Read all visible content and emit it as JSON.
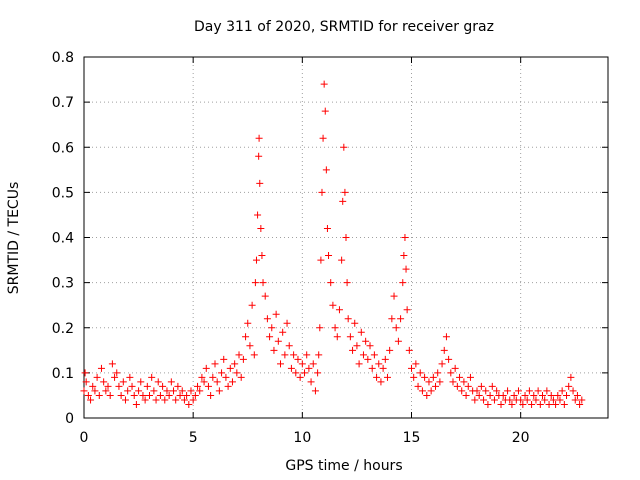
{
  "chart_data": {
    "type": "scatter",
    "title": "Day 311 of 2020, SRMTID for receiver graz",
    "xlabel": "GPS time / hours",
    "ylabel": "SRMTID / TECUs",
    "xlim": [
      0,
      24
    ],
    "ylim": [
      0,
      0.8
    ],
    "x_ticks": [
      0,
      5,
      10,
      15,
      20
    ],
    "x_tick_labels": [
      "0",
      "5",
      "10",
      "15",
      "20"
    ],
    "y_ticks": [
      0,
      0.1,
      0.2,
      0.3,
      0.4,
      0.5,
      0.6,
      0.7,
      0.8
    ],
    "y_tick_labels": [
      "0",
      "0.1",
      "0.2",
      "0.3",
      "0.4",
      "0.5",
      "0.6",
      "0.7",
      "0.8"
    ],
    "grid": true,
    "marker": "+",
    "color": "#ff0000",
    "series": [
      {
        "name": "SRMTID",
        "points": [
          [
            0.0,
            0.06
          ],
          [
            0.05,
            0.1
          ],
          [
            0.1,
            0.08
          ],
          [
            0.2,
            0.05
          ],
          [
            0.3,
            0.04
          ],
          [
            0.4,
            0.07
          ],
          [
            0.5,
            0.06
          ],
          [
            0.6,
            0.09
          ],
          [
            0.7,
            0.05
          ],
          [
            0.8,
            0.11
          ],
          [
            0.9,
            0.08
          ],
          [
            1.0,
            0.06
          ],
          [
            1.1,
            0.07
          ],
          [
            1.2,
            0.05
          ],
          [
            1.3,
            0.12
          ],
          [
            1.4,
            0.09
          ],
          [
            1.5,
            0.1
          ],
          [
            1.6,
            0.07
          ],
          [
            1.7,
            0.05
          ],
          [
            1.8,
            0.08
          ],
          [
            1.9,
            0.04
          ],
          [
            2.0,
            0.06
          ],
          [
            2.1,
            0.09
          ],
          [
            2.2,
            0.07
          ],
          [
            2.3,
            0.05
          ],
          [
            2.4,
            0.03
          ],
          [
            2.5,
            0.06
          ],
          [
            2.6,
            0.08
          ],
          [
            2.7,
            0.05
          ],
          [
            2.8,
            0.04
          ],
          [
            2.9,
            0.07
          ],
          [
            3.0,
            0.05
          ],
          [
            3.1,
            0.09
          ],
          [
            3.2,
            0.06
          ],
          [
            3.3,
            0.04
          ],
          [
            3.4,
            0.08
          ],
          [
            3.5,
            0.05
          ],
          [
            3.6,
            0.07
          ],
          [
            3.7,
            0.04
          ],
          [
            3.8,
            0.06
          ],
          [
            3.9,
            0.05
          ],
          [
            4.0,
            0.08
          ],
          [
            4.1,
            0.06
          ],
          [
            4.2,
            0.04
          ],
          [
            4.3,
            0.07
          ],
          [
            4.4,
            0.05
          ],
          [
            4.5,
            0.06
          ],
          [
            4.6,
            0.04
          ],
          [
            4.7,
            0.05
          ],
          [
            4.8,
            0.03
          ],
          [
            4.9,
            0.06
          ],
          [
            5.0,
            0.04
          ],
          [
            5.1,
            0.05
          ],
          [
            5.2,
            0.07
          ],
          [
            5.3,
            0.06
          ],
          [
            5.4,
            0.09
          ],
          [
            5.5,
            0.08
          ],
          [
            5.6,
            0.11
          ],
          [
            5.7,
            0.07
          ],
          [
            5.8,
            0.05
          ],
          [
            5.9,
            0.09
          ],
          [
            6.0,
            0.12
          ],
          [
            6.1,
            0.08
          ],
          [
            6.2,
            0.06
          ],
          [
            6.3,
            0.1
          ],
          [
            6.4,
            0.13
          ],
          [
            6.5,
            0.09
          ],
          [
            6.6,
            0.07
          ],
          [
            6.7,
            0.11
          ],
          [
            6.8,
            0.08
          ],
          [
            6.9,
            0.12
          ],
          [
            7.0,
            0.1
          ],
          [
            7.1,
            0.14
          ],
          [
            7.2,
            0.09
          ],
          [
            7.3,
            0.13
          ],
          [
            7.4,
            0.18
          ],
          [
            7.5,
            0.21
          ],
          [
            7.6,
            0.16
          ],
          [
            7.7,
            0.25
          ],
          [
            7.8,
            0.14
          ],
          [
            7.85,
            0.3
          ],
          [
            7.9,
            0.35
          ],
          [
            7.95,
            0.45
          ],
          [
            8.0,
            0.58
          ],
          [
            8.02,
            0.62
          ],
          [
            8.05,
            0.52
          ],
          [
            8.1,
            0.42
          ],
          [
            8.15,
            0.36
          ],
          [
            8.2,
            0.3
          ],
          [
            8.3,
            0.27
          ],
          [
            8.4,
            0.22
          ],
          [
            8.5,
            0.18
          ],
          [
            8.6,
            0.2
          ],
          [
            8.7,
            0.15
          ],
          [
            8.8,
            0.23
          ],
          [
            8.9,
            0.17
          ],
          [
            9.0,
            0.12
          ],
          [
            9.1,
            0.19
          ],
          [
            9.2,
            0.14
          ],
          [
            9.3,
            0.21
          ],
          [
            9.4,
            0.16
          ],
          [
            9.5,
            0.11
          ],
          [
            9.6,
            0.14
          ],
          [
            9.7,
            0.1
          ],
          [
            9.8,
            0.13
          ],
          [
            9.9,
            0.09
          ],
          [
            10.0,
            0.12
          ],
          [
            10.1,
            0.1
          ],
          [
            10.2,
            0.14
          ],
          [
            10.3,
            0.11
          ],
          [
            10.4,
            0.08
          ],
          [
            10.5,
            0.12
          ],
          [
            10.6,
            0.06
          ],
          [
            10.7,
            0.1
          ],
          [
            10.75,
            0.14
          ],
          [
            10.8,
            0.2
          ],
          [
            10.85,
            0.35
          ],
          [
            10.9,
            0.5
          ],
          [
            10.95,
            0.62
          ],
          [
            11.0,
            0.74
          ],
          [
            11.05,
            0.68
          ],
          [
            11.1,
            0.55
          ],
          [
            11.15,
            0.42
          ],
          [
            11.2,
            0.36
          ],
          [
            11.3,
            0.3
          ],
          [
            11.4,
            0.25
          ],
          [
            11.5,
            0.2
          ],
          [
            11.6,
            0.18
          ],
          [
            11.7,
            0.24
          ],
          [
            11.8,
            0.35
          ],
          [
            11.85,
            0.48
          ],
          [
            11.9,
            0.6
          ],
          [
            11.95,
            0.5
          ],
          [
            12.0,
            0.4
          ],
          [
            12.05,
            0.3
          ],
          [
            12.1,
            0.22
          ],
          [
            12.2,
            0.18
          ],
          [
            12.3,
            0.15
          ],
          [
            12.4,
            0.21
          ],
          [
            12.5,
            0.16
          ],
          [
            12.6,
            0.12
          ],
          [
            12.7,
            0.19
          ],
          [
            12.8,
            0.14
          ],
          [
            12.9,
            0.17
          ],
          [
            13.0,
            0.13
          ],
          [
            13.1,
            0.16
          ],
          [
            13.2,
            0.11
          ],
          [
            13.3,
            0.14
          ],
          [
            13.4,
            0.09
          ],
          [
            13.5,
            0.12
          ],
          [
            13.6,
            0.08
          ],
          [
            13.7,
            0.11
          ],
          [
            13.8,
            0.13
          ],
          [
            13.9,
            0.09
          ],
          [
            14.0,
            0.15
          ],
          [
            14.1,
            0.22
          ],
          [
            14.2,
            0.27
          ],
          [
            14.3,
            0.2
          ],
          [
            14.4,
            0.17
          ],
          [
            14.5,
            0.22
          ],
          [
            14.6,
            0.3
          ],
          [
            14.65,
            0.36
          ],
          [
            14.7,
            0.4
          ],
          [
            14.75,
            0.33
          ],
          [
            14.8,
            0.24
          ],
          [
            14.9,
            0.15
          ],
          [
            15.0,
            0.11
          ],
          [
            15.1,
            0.09
          ],
          [
            15.2,
            0.12
          ],
          [
            15.3,
            0.07
          ],
          [
            15.4,
            0.1
          ],
          [
            15.5,
            0.06
          ],
          [
            15.6,
            0.09
          ],
          [
            15.7,
            0.05
          ],
          [
            15.8,
            0.08
          ],
          [
            15.9,
            0.06
          ],
          [
            16.0,
            0.09
          ],
          [
            16.1,
            0.07
          ],
          [
            16.2,
            0.1
          ],
          [
            16.3,
            0.08
          ],
          [
            16.4,
            0.12
          ],
          [
            16.5,
            0.15
          ],
          [
            16.6,
            0.18
          ],
          [
            16.7,
            0.13
          ],
          [
            16.8,
            0.1
          ],
          [
            16.9,
            0.08
          ],
          [
            17.0,
            0.11
          ],
          [
            17.1,
            0.07
          ],
          [
            17.2,
            0.09
          ],
          [
            17.3,
            0.06
          ],
          [
            17.4,
            0.08
          ],
          [
            17.5,
            0.05
          ],
          [
            17.6,
            0.07
          ],
          [
            17.7,
            0.09
          ],
          [
            17.8,
            0.06
          ],
          [
            17.9,
            0.04
          ],
          [
            18.0,
            0.06
          ],
          [
            18.1,
            0.05
          ],
          [
            18.2,
            0.07
          ],
          [
            18.3,
            0.04
          ],
          [
            18.4,
            0.06
          ],
          [
            18.5,
            0.03
          ],
          [
            18.6,
            0.05
          ],
          [
            18.7,
            0.07
          ],
          [
            18.8,
            0.04
          ],
          [
            18.9,
            0.06
          ],
          [
            19.0,
            0.05
          ],
          [
            19.1,
            0.03
          ],
          [
            19.2,
            0.05
          ],
          [
            19.3,
            0.04
          ],
          [
            19.4,
            0.06
          ],
          [
            19.5,
            0.04
          ],
          [
            19.6,
            0.03
          ],
          [
            19.7,
            0.05
          ],
          [
            19.8,
            0.04
          ],
          [
            19.9,
            0.06
          ],
          [
            20.0,
            0.04
          ],
          [
            20.1,
            0.03
          ],
          [
            20.2,
            0.05
          ],
          [
            20.3,
            0.04
          ],
          [
            20.4,
            0.06
          ],
          [
            20.5,
            0.03
          ],
          [
            20.6,
            0.05
          ],
          [
            20.7,
            0.04
          ],
          [
            20.8,
            0.06
          ],
          [
            20.9,
            0.03
          ],
          [
            21.0,
            0.05
          ],
          [
            21.1,
            0.04
          ],
          [
            21.2,
            0.06
          ],
          [
            21.3,
            0.03
          ],
          [
            21.4,
            0.05
          ],
          [
            21.5,
            0.04
          ],
          [
            21.6,
            0.03
          ],
          [
            21.7,
            0.05
          ],
          [
            21.8,
            0.04
          ],
          [
            21.9,
            0.06
          ],
          [
            22.0,
            0.03
          ],
          [
            22.1,
            0.05
          ],
          [
            22.2,
            0.07
          ],
          [
            22.3,
            0.09
          ],
          [
            22.4,
            0.06
          ],
          [
            22.5,
            0.04
          ],
          [
            22.6,
            0.05
          ],
          [
            22.7,
            0.03
          ],
          [
            22.8,
            0.04
          ]
        ]
      }
    ]
  }
}
